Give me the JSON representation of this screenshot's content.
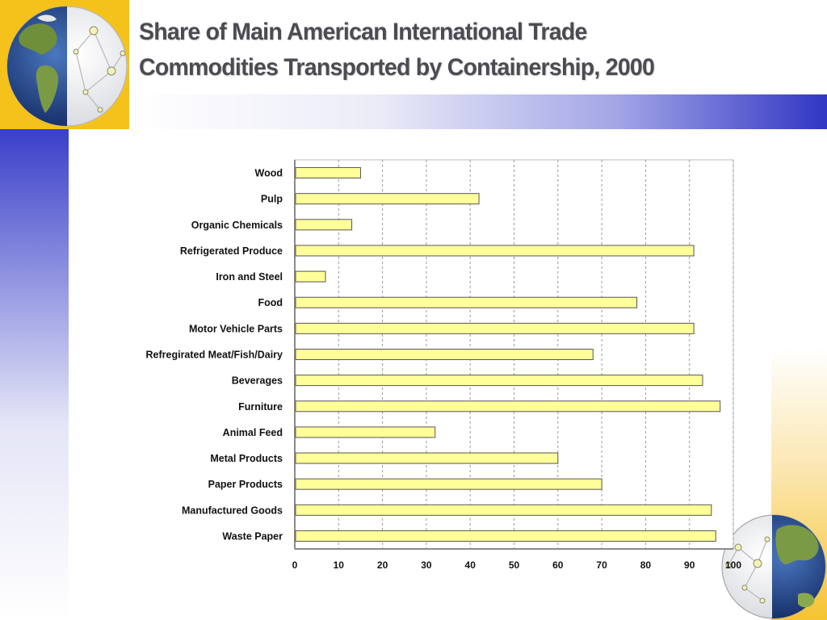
{
  "title": {
    "line1": "Share of Main American International Trade",
    "line2": "Commodities Transported by Containership, 2000"
  },
  "colors": {
    "bar_fill": "#ffff99",
    "bar_stroke": "#555555",
    "corner_accent": "#f4c21a",
    "band_blue": "#3136c4",
    "title_text": "#4b4b52"
  },
  "decor": {
    "top_left": "globe-network-icon",
    "bottom_right": "globe-network-icon"
  },
  "chart_data": {
    "type": "bar",
    "orientation": "horizontal",
    "categories": [
      "Wood",
      "Pulp",
      "Organic Chemicals",
      "Refrigerated Produce",
      "Iron and Steel",
      "Food",
      "Motor Vehicle Parts",
      "Refregirated Meat/Fish/Dairy",
      "Beverages",
      "Furniture",
      "Animal Feed",
      "Metal Products",
      "Paper Products",
      "Manufactured Goods",
      "Waste Paper"
    ],
    "values": [
      15,
      42,
      13,
      91,
      7,
      78,
      91,
      68,
      93,
      97,
      32,
      60,
      70,
      95,
      96
    ],
    "xlim": [
      0,
      100
    ],
    "xticks": [
      0,
      10,
      20,
      30,
      40,
      50,
      60,
      70,
      80,
      90,
      100
    ],
    "grid": "vertical dashed",
    "legend": "none"
  }
}
